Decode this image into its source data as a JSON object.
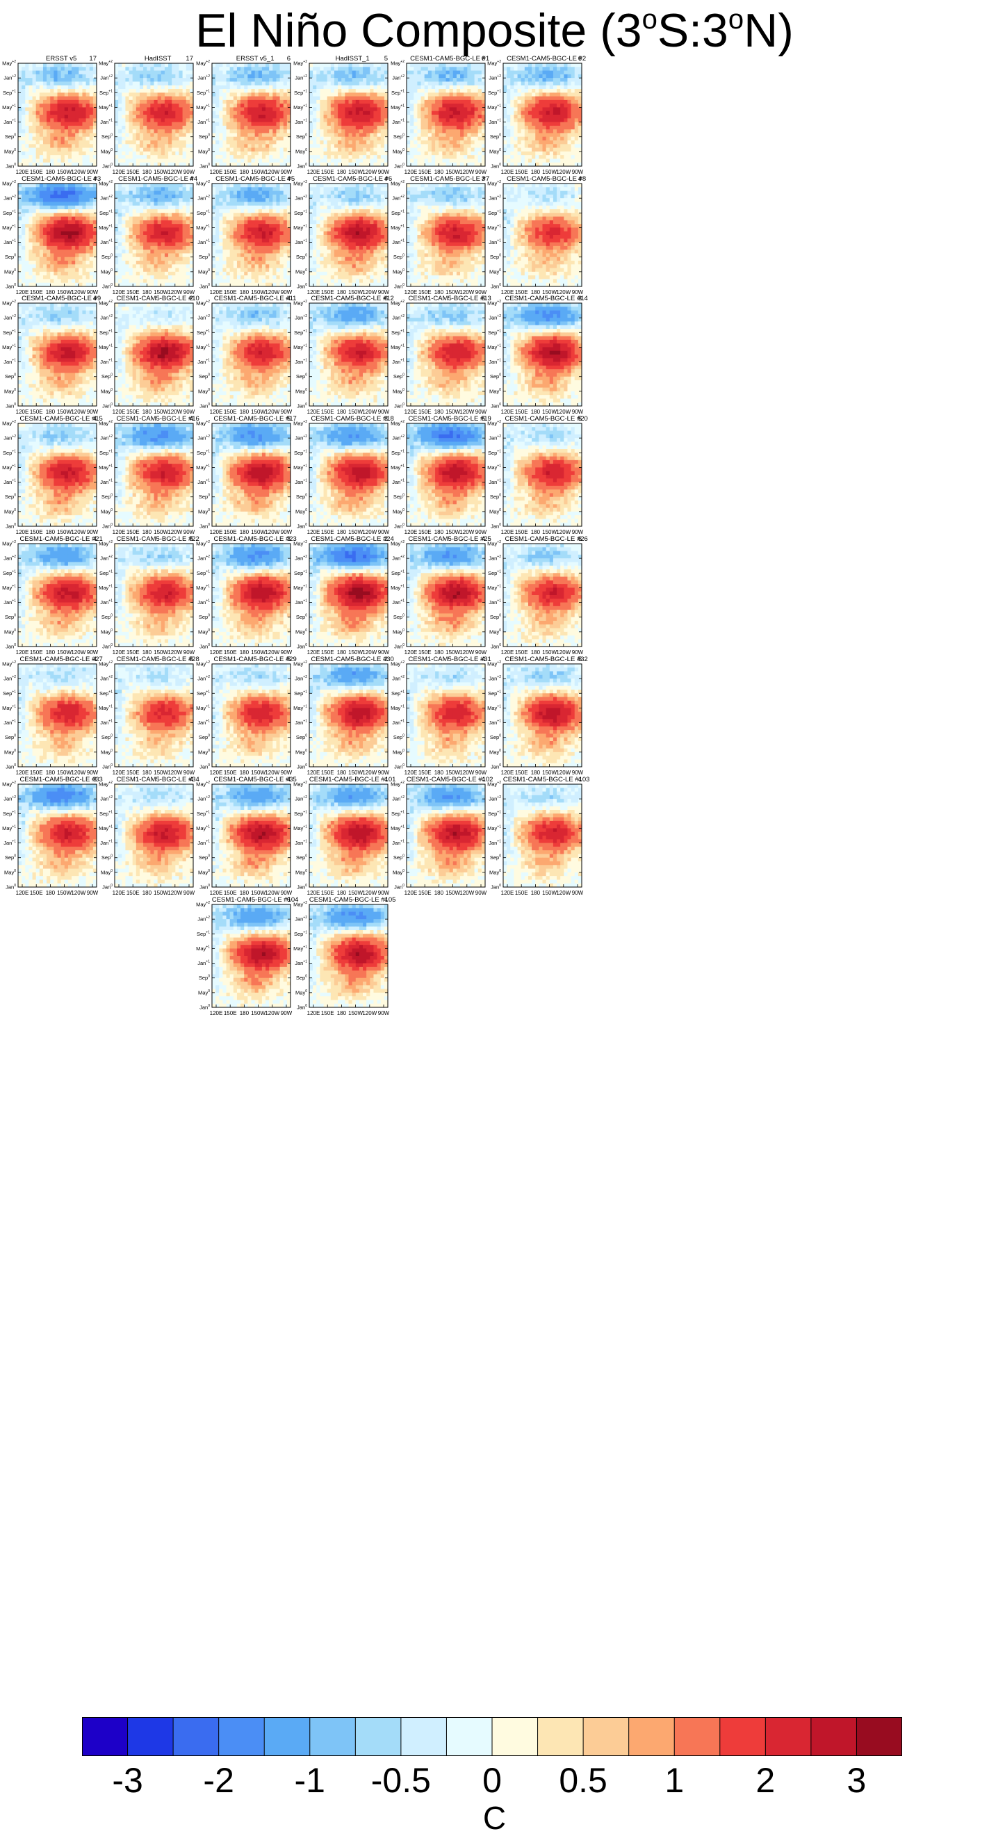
{
  "figure": {
    "title_main": "El Niño Composite (3",
    "title_s_mid": "S:3",
    "title_n_end": "N)",
    "title_sup": "o"
  },
  "chart_data": {
    "type": "heatmap",
    "title": "El Niño Composite (3°S:3°N)",
    "x_ticks": [
      "120E",
      "150E",
      "180",
      "150W",
      "120W",
      "90W"
    ],
    "y_ticks": [
      "Jan",
      "May",
      "Sep",
      "Jan",
      "May",
      "Sep",
      "Jan",
      "May"
    ],
    "y_sups": [
      "0",
      "0",
      "0",
      "+1",
      "+1",
      "+1",
      "+2",
      "+2"
    ],
    "panels": [
      {
        "name": "ERSST v5",
        "count": "17",
        "peak": 2.6,
        "cool": 1.0
      },
      {
        "name": "HadISST",
        "count": "17",
        "peak": 2.4,
        "cool": 0.8
      },
      {
        "name": "ERSST v5_1",
        "count": "6",
        "peak": 2.5,
        "cool": 1.0
      },
      {
        "name": "HadISST_1",
        "count": "5",
        "peak": 2.7,
        "cool": 0.9
      },
      {
        "name": "CESM1-CAM5-BGC-LE #1",
        "count": "6",
        "peak": 2.6,
        "cool": 1.0
      },
      {
        "name": "CESM1-CAM5-BGC-LE #2",
        "count": "6",
        "peak": 2.6,
        "cool": 1.1
      },
      {
        "name": "CESM1-CAM5-BGC-LE #3",
        "count": "4",
        "peak": 3.2,
        "cool": 2.2
      },
      {
        "name": "CESM1-CAM5-BGC-LE #4",
        "count": "4",
        "peak": 2.4,
        "cool": 1.1
      },
      {
        "name": "CESM1-CAM5-BGC-LE #5",
        "count": "4",
        "peak": 2.5,
        "cool": 1.2
      },
      {
        "name": "CESM1-CAM5-BGC-LE #6",
        "count": "4",
        "peak": 2.9,
        "cool": 0.8
      },
      {
        "name": "CESM1-CAM5-BGC-LE #7",
        "count": "3",
        "peak": 2.5,
        "cool": 0.8
      },
      {
        "name": "CESM1-CAM5-BGC-LE #8",
        "count": "4",
        "peak": 2.1,
        "cool": 0.5
      },
      {
        "name": "CESM1-CAM5-BGC-LE #9",
        "count": "4",
        "peak": 2.6,
        "cool": 0.8
      },
      {
        "name": "CESM1-CAM5-BGC-LE #10",
        "count": "2",
        "peak": 3.1,
        "cool": 0.4
      },
      {
        "name": "CESM1-CAM5-BGC-LE #11",
        "count": "4",
        "peak": 2.4,
        "cool": 0.9
      },
      {
        "name": "CESM1-CAM5-BGC-LE #12",
        "count": "6",
        "peak": 2.5,
        "cool": 1.3
      },
      {
        "name": "CESM1-CAM5-BGC-LE #13",
        "count": "5",
        "peak": 2.4,
        "cool": 0.8
      },
      {
        "name": "CESM1-CAM5-BGC-LE #14",
        "count": "3",
        "peak": 3.0,
        "cool": 1.7
      },
      {
        "name": "CESM1-CAM5-BGC-LE #15",
        "count": "4",
        "peak": 2.6,
        "cool": 0.8
      },
      {
        "name": "CESM1-CAM5-BGC-LE #16",
        "count": "4",
        "peak": 2.5,
        "cool": 1.7
      },
      {
        "name": "CESM1-CAM5-BGC-LE #17",
        "count": "5",
        "peak": 2.9,
        "cool": 1.6
      },
      {
        "name": "CESM1-CAM5-BGC-LE #18",
        "count": "3",
        "peak": 2.8,
        "cool": 1.5
      },
      {
        "name": "CESM1-CAM5-BGC-LE #19",
        "count": "5",
        "peak": 2.9,
        "cool": 2.1
      },
      {
        "name": "CESM1-CAM5-BGC-LE #20",
        "count": "5",
        "peak": 2.4,
        "cool": 0.6
      },
      {
        "name": "CESM1-CAM5-BGC-LE #21",
        "count": "4",
        "peak": 2.7,
        "cool": 1.4
      },
      {
        "name": "CESM1-CAM5-BGC-LE #22",
        "count": "5",
        "peak": 2.5,
        "cool": 0.7
      },
      {
        "name": "CESM1-CAM5-BGC-LE #23",
        "count": "3",
        "peak": 2.9,
        "cool": 1.6
      },
      {
        "name": "CESM1-CAM5-BGC-LE #24",
        "count": "2",
        "peak": 3.3,
        "cool": 2.1
      },
      {
        "name": "CESM1-CAM5-BGC-LE #25",
        "count": "4",
        "peak": 3.0,
        "cool": 1.5
      },
      {
        "name": "CESM1-CAM5-BGC-LE #26",
        "count": "6",
        "peak": 2.4,
        "cool": 0.8
      },
      {
        "name": "CESM1-CAM5-BGC-LE #27",
        "count": "4",
        "peak": 2.4,
        "cool": 0.6
      },
      {
        "name": "CESM1-CAM5-BGC-LE #28",
        "count": "5",
        "peak": 2.2,
        "cool": 0.5
      },
      {
        "name": "CESM1-CAM5-BGC-LE #29",
        "count": "5",
        "peak": 2.4,
        "cool": 0.6
      },
      {
        "name": "CESM1-CAM5-BGC-LE #30",
        "count": "2",
        "peak": 2.8,
        "cool": 1.4
      },
      {
        "name": "CESM1-CAM5-BGC-LE #31",
        "count": "4",
        "peak": 2.4,
        "cool": 0.6
      },
      {
        "name": "CESM1-CAM5-BGC-LE #32",
        "count": "5",
        "peak": 2.8,
        "cool": 0.8
      },
      {
        "name": "CESM1-CAM5-BGC-LE #33",
        "count": "3",
        "peak": 2.6,
        "cool": 1.8
      },
      {
        "name": "CESM1-CAM5-BGC-LE #34",
        "count": "4",
        "peak": 2.6,
        "cool": 0.6
      },
      {
        "name": "CESM1-CAM5-BGC-LE #35",
        "count": "4",
        "peak": 3.0,
        "cool": 1.4
      },
      {
        "name": "CESM1-CAM5-BGC-LE #101",
        "count": "4",
        "peak": 2.9,
        "cool": 1.4
      },
      {
        "name": "CESM1-CAM5-BGC-LE #102",
        "count": "4",
        "peak": 2.9,
        "cool": 1.5
      },
      {
        "name": "CESM1-CAM5-BGC-LE #103",
        "count": "4",
        "peak": 2.4,
        "cool": 0.6
      },
      {
        "name": "CESM1-CAM5-BGC-LE #104",
        "count": "6",
        "peak": 2.9,
        "cool": 1.4
      },
      {
        "name": "CESM1-CAM5-BGC-LE #105",
        "count": "4",
        "peak": 2.9,
        "cool": 1.6
      }
    ],
    "colorbar": {
      "levels": [
        -3,
        -2.5,
        -2,
        -1.5,
        -1,
        -0.75,
        -0.5,
        -0.25,
        0,
        0.25,
        0.5,
        0.75,
        1,
        1.5,
        2,
        2.5,
        3
      ],
      "colors": [
        "#1d00c8",
        "#1e38e6",
        "#3a6cf0",
        "#4b8ef5",
        "#5aaaf5",
        "#7ec4f7",
        "#a4dcf9",
        "#d0efff",
        "#e6fbff",
        "#fffbe0",
        "#fde6b4",
        "#fccc96",
        "#fca870",
        "#f77656",
        "#ee3c3a",
        "#d92632",
        "#c0162a",
        "#980c20"
      ],
      "labels": [
        {
          "value": -3,
          "text": "-3"
        },
        {
          "value": -2,
          "text": "-2"
        },
        {
          "value": -1,
          "text": "-1"
        },
        {
          "value": -0.5,
          "text": "-0.5"
        },
        {
          "value": 0,
          "text": "0"
        },
        {
          "value": 0.5,
          "text": "0.5"
        },
        {
          "value": 1,
          "text": "1"
        },
        {
          "value": 2,
          "text": "2"
        },
        {
          "value": 3,
          "text": "3"
        }
      ],
      "units": "C"
    }
  }
}
